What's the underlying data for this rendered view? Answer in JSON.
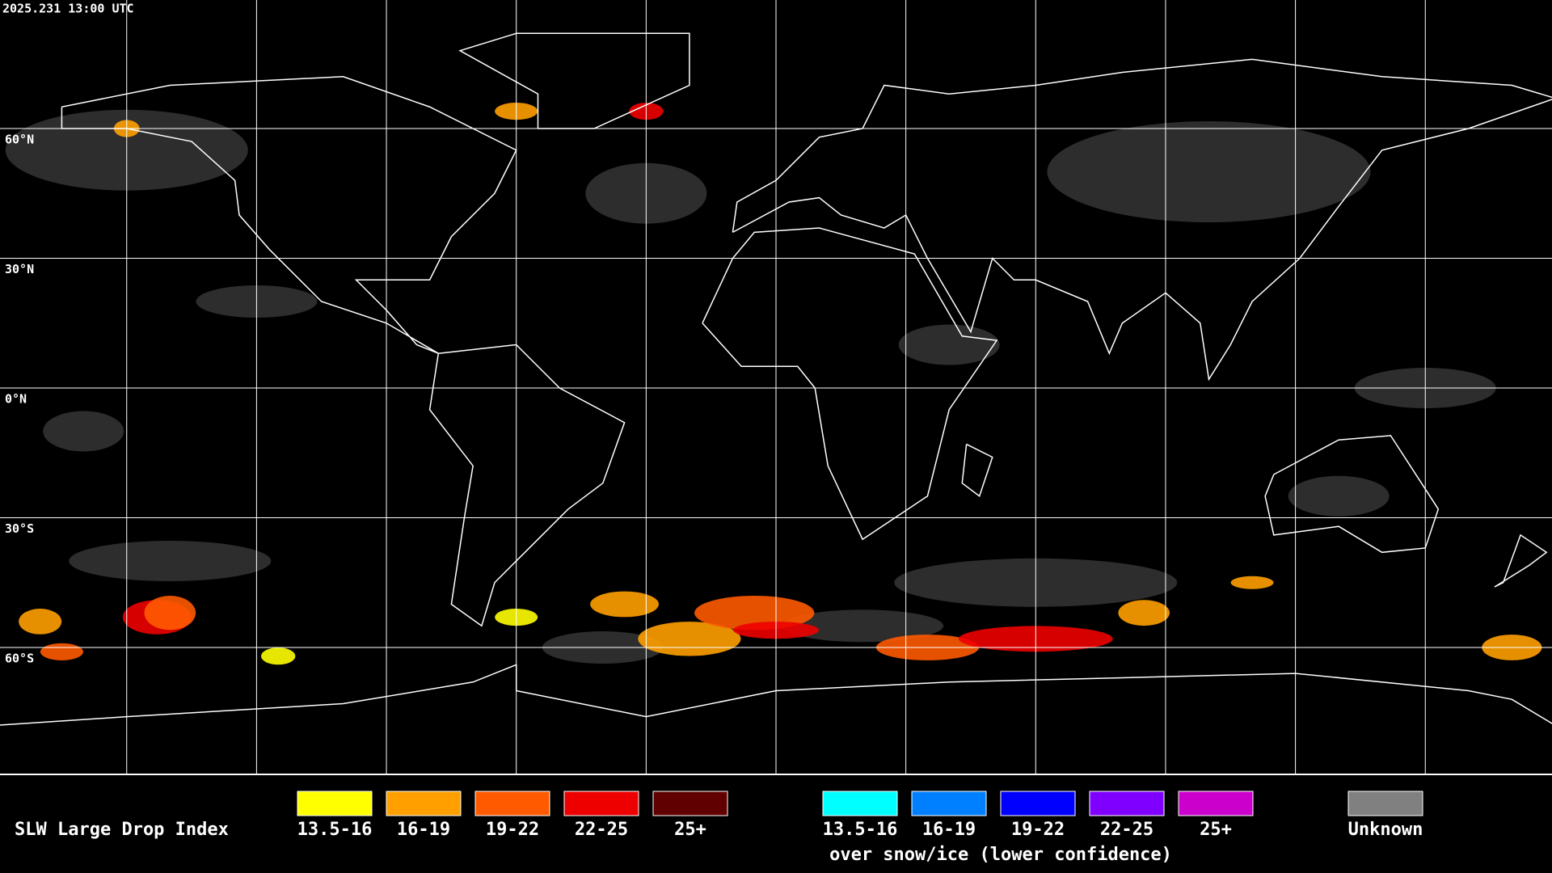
{
  "header": {
    "timestamp": "2025.231 13:00 UTC"
  },
  "grid": {
    "lat_labels": [
      "60°N",
      "30°N",
      "0°N",
      "30°S",
      "60°S"
    ]
  },
  "legend": {
    "title": "SLW Large Drop Index",
    "liquid": [
      {
        "label": "13.5-16",
        "color": "#ffff00"
      },
      {
        "label": "16-19",
        "color": "#ffa000"
      },
      {
        "label": "19-22",
        "color": "#ff5a00"
      },
      {
        "label": "22-25",
        "color": "#ee0000"
      },
      {
        "label": "25+",
        "color": "#600000"
      }
    ],
    "ice": [
      {
        "label": "13.5-16",
        "color": "#00ffff"
      },
      {
        "label": "16-19",
        "color": "#0080ff"
      },
      {
        "label": "19-22",
        "color": "#0000ff"
      },
      {
        "label": "22-25",
        "color": "#8000ff"
      },
      {
        "label": "25+",
        "color": "#cc00cc"
      }
    ],
    "ice_note": "over snow/ice (lower confidence)",
    "unknown": {
      "label": "Unknown",
      "color": "#808080"
    }
  }
}
